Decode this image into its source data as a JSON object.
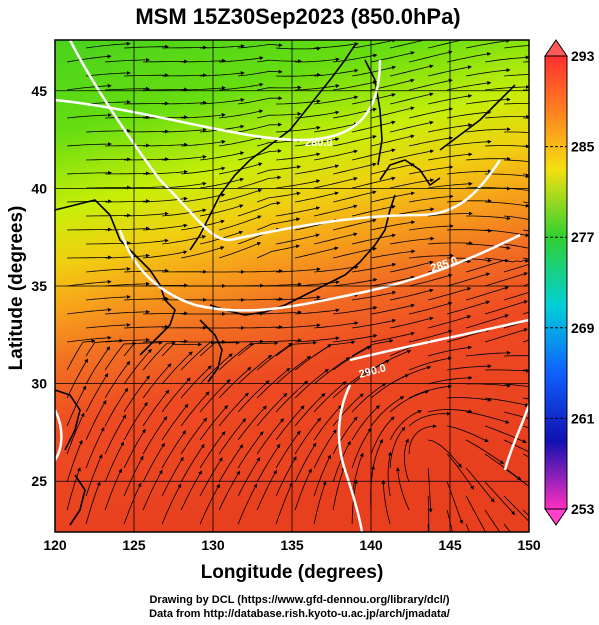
{
  "chart_data": {
    "type": "heatmap",
    "title": "MSM 15Z30Sep2023 (850.0hPa)",
    "xlabel": "Longitude (degrees)",
    "ylabel": "Latitude  (degrees)",
    "xlim": [
      120,
      150
    ],
    "ylim": [
      22.4,
      47.6
    ],
    "x_ticks": [
      "120",
      "125",
      "130",
      "135",
      "140",
      "145",
      "150"
    ],
    "y_ticks": [
      "25",
      "30",
      "35",
      "40",
      "45"
    ],
    "colorbar": {
      "range": [
        253,
        293
      ],
      "ticks": [
        "293",
        "285",
        "277",
        "269",
        "261",
        "253"
      ]
    },
    "contours": [
      {
        "label": "280.0"
      },
      {
        "label": "285.0"
      },
      {
        "label": "290.0"
      }
    ],
    "grid": true,
    "overlays": [
      "streamlines",
      "coastlines",
      "temperature contours"
    ]
  },
  "footer": {
    "line1": "Drawing by DCL (https://www.gfd-dennou.org/library/dcl/)",
    "line2": "Data from http://database.rish.kyoto-u.ac.jp/arch/jmadata/"
  }
}
